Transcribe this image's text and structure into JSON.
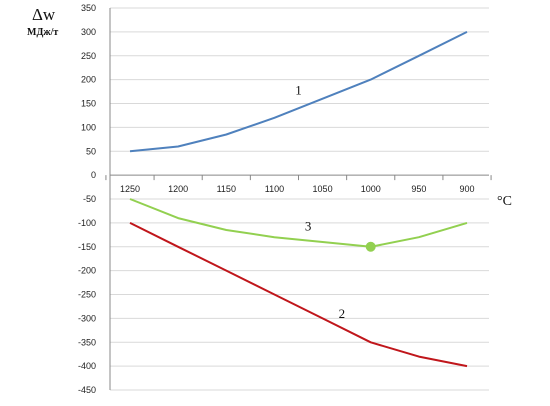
{
  "chart_data": {
    "type": "line",
    "ylabel": "Δw",
    "yunit": "МДж/т",
    "xlabel": "°С",
    "x": [
      1250,
      1200,
      1150,
      1100,
      1050,
      1000,
      950,
      900
    ],
    "xlim": [
      1250,
      900
    ],
    "ylim": [
      -450,
      350
    ],
    "ytick_step": 50,
    "grid": true,
    "series": [
      {
        "name": "1",
        "color": "#4f81bd",
        "values": [
          50,
          60,
          85,
          120,
          160,
          200,
          250,
          300
        ]
      },
      {
        "name": "2",
        "color": "#c0161b",
        "values": [
          -100,
          -150,
          -200,
          -250,
          -300,
          -350,
          -380,
          -400
        ]
      },
      {
        "name": "3",
        "color": "#92d050",
        "values": [
          -50,
          -90,
          -115,
          -130,
          -140,
          -150,
          -130,
          -100
        ],
        "marker_x": 1000
      }
    ]
  }
}
